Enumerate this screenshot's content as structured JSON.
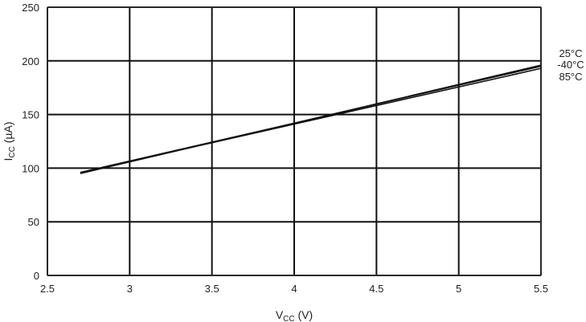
{
  "chart_data": {
    "type": "line",
    "title": "",
    "xlabel": "V",
    "xlabel_sub": "CC",
    "xlabel_unit": " (V)",
    "ylabel": "I",
    "ylabel_sub": "CC",
    "ylabel_unit": " (µA)",
    "xlim": [
      2.5,
      5.5
    ],
    "ylim": [
      0,
      250
    ],
    "x_ticks": [
      "2.5",
      "3",
      "3.5",
      "4",
      "4.5",
      "5",
      "5.5"
    ],
    "y_ticks": [
      "0",
      "50",
      "100",
      "150",
      "200",
      "250"
    ],
    "x_tick_values": [
      2.5,
      3,
      3.5,
      4,
      4.5,
      5,
      5.5
    ],
    "y_tick_values": [
      0,
      50,
      100,
      150,
      200,
      250
    ],
    "grid": true,
    "legend_position": "right",
    "series": [
      {
        "name": "25°C",
        "x": [
          2.7,
          5.5
        ],
        "y": [
          95,
          196
        ]
      },
      {
        "name": "-40°C",
        "x": [
          2.7,
          5.5
        ],
        "y": [
          96,
          195
        ]
      },
      {
        "name": "85°C",
        "x": [
          2.7,
          5.5
        ],
        "y": [
          96,
          193
        ]
      }
    ]
  }
}
